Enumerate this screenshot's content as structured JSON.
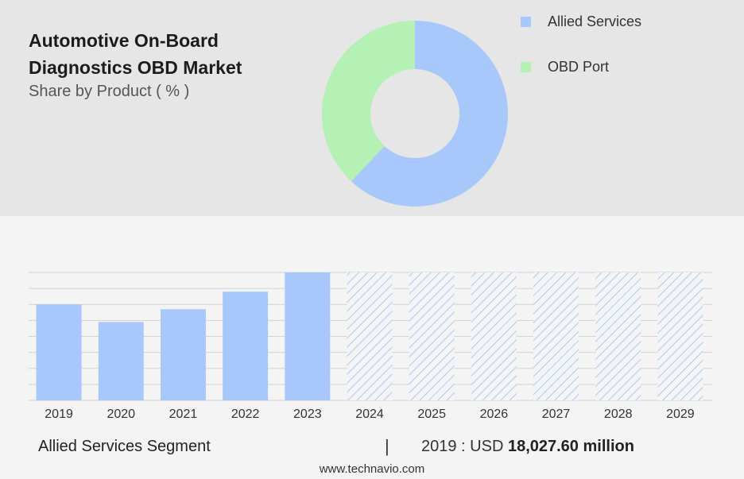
{
  "header": {
    "title": "Automotive On-Board Diagnostics OBD Market",
    "subtitle": "Share by Product ( % )"
  },
  "chart_data": [
    {
      "type": "pie",
      "variant": "donut",
      "title": "Automotive On-Board Diagnostics OBD Market",
      "subtitle": "Share by Product ( % )",
      "labels": [
        "Allied Services",
        "OBD Port"
      ],
      "values": [
        62,
        38
      ],
      "colors": [
        "#a8c8fb",
        "#b5f0b5"
      ],
      "legend": "top-right"
    },
    {
      "type": "bar",
      "categories": [
        "2019",
        "2020",
        "2021",
        "2022",
        "2023",
        "2024",
        "2025",
        "2026",
        "2027",
        "2028",
        "2029"
      ],
      "series": [
        {
          "name": "Allied Services Segment",
          "values": [
            60,
            49,
            57,
            68,
            80,
            null,
            null,
            null,
            null,
            null,
            null
          ]
        }
      ],
      "forecast_categories": [
        "2024",
        "2025",
        "2026",
        "2027",
        "2028",
        "2029"
      ],
      "forecast_value": 80,
      "ylim": [
        0,
        80
      ],
      "grid": true,
      "bar_color": "#a8c8fb",
      "forecast_pattern": "diagonal-hatch"
    }
  ],
  "footer": {
    "segment_label": "Allied Services Segment",
    "separator": "|",
    "stat_prefix": "2019 : USD",
    "stat_value": "18,027.60 million",
    "source": "www.technavio.com"
  }
}
